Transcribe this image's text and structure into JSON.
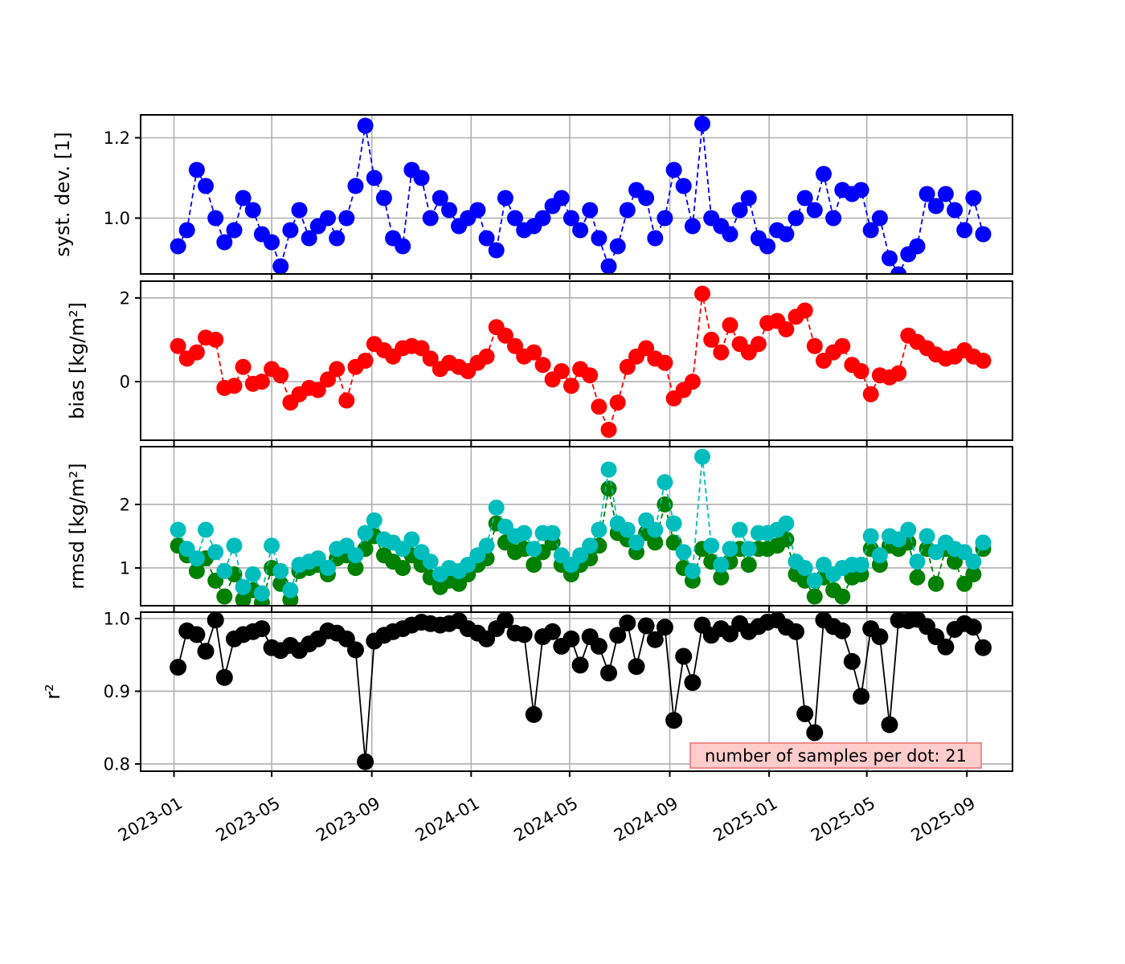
{
  "figure": {
    "background": "#ffffff",
    "grid_color": "#b0b0b0",
    "spine_color": "#000000"
  },
  "legend": {
    "text": "number of samples per dot: 21",
    "bg": "#ffcccc",
    "border": "#f28b8b"
  },
  "x_axis": {
    "tick_labels": [
      "2023-01",
      "2023-05",
      "2023-09",
      "2024-01",
      "2024-05",
      "2024-09",
      "2025-01",
      "2025-05",
      "2025-09"
    ],
    "tick_dates": [
      "2023-01-01",
      "2023-05-01",
      "2023-09-01",
      "2024-01-01",
      "2024-05-01",
      "2024-09-01",
      "2025-01-01",
      "2025-05-01",
      "2025-09-01"
    ],
    "xlim": [
      "2022-11-21",
      "2025-10-27"
    ],
    "rotation_deg": 30
  },
  "chart_data": {
    "type": "line",
    "x_dates": [
      "2023-01-06",
      "2023-01-17",
      "2023-01-29",
      "2023-02-09",
      "2023-02-21",
      "2023-03-04",
      "2023-03-16",
      "2023-03-27",
      "2023-04-08",
      "2023-04-19",
      "2023-05-01",
      "2023-05-12",
      "2023-05-24",
      "2023-06-04",
      "2023-06-16",
      "2023-06-27",
      "2023-07-09",
      "2023-07-20",
      "2023-08-01",
      "2023-08-12",
      "2023-08-24",
      "2023-09-04",
      "2023-09-16",
      "2023-09-27",
      "2023-10-09",
      "2023-10-20",
      "2023-11-01",
      "2023-11-12",
      "2023-11-24",
      "2023-12-05",
      "2023-12-17",
      "2023-12-28",
      "2024-01-09",
      "2024-01-20",
      "2024-02-01",
      "2024-02-12",
      "2024-02-24",
      "2024-03-06",
      "2024-03-18",
      "2024-03-29",
      "2024-04-10",
      "2024-04-21",
      "2024-05-03",
      "2024-05-14",
      "2024-05-26",
      "2024-06-06",
      "2024-06-18",
      "2024-06-29",
      "2024-07-11",
      "2024-07-22",
      "2024-08-03",
      "2024-08-14",
      "2024-08-26",
      "2024-09-06",
      "2024-09-18",
      "2024-09-29",
      "2024-10-11",
      "2024-10-22",
      "2024-11-03",
      "2024-11-14",
      "2024-11-26",
      "2024-12-07",
      "2024-12-19",
      "2024-12-30",
      "2025-01-11",
      "2025-01-22",
      "2025-02-03",
      "2025-02-14",
      "2025-02-26",
      "2025-03-09",
      "2025-03-21",
      "2025-04-01",
      "2025-04-13",
      "2025-04-24",
      "2025-05-06",
      "2025-05-17",
      "2025-05-29",
      "2025-06-09",
      "2025-06-21",
      "2025-07-02",
      "2025-07-14",
      "2025-07-25",
      "2025-08-06",
      "2025-08-17",
      "2025-08-29",
      "2025-09-09",
      "2025-09-21"
    ],
    "panels": [
      {
        "name": "syst-dev",
        "ylabel": "syst. dev. [1]",
        "ylim": [
          0.861,
          1.257
        ],
        "yticks": [
          {
            "v": 1.0,
            "label": "1.0"
          },
          {
            "v": 1.2,
            "label": "1.2"
          }
        ],
        "series": [
          {
            "name": "syst_dev",
            "color": "#0000ff",
            "linestyle": "dashed",
            "values": [
              0.93,
              0.97,
              1.12,
              1.08,
              1.0,
              0.94,
              0.97,
              1.05,
              1.02,
              0.96,
              0.94,
              0.88,
              0.97,
              1.02,
              0.95,
              0.98,
              1.0,
              0.95,
              1.0,
              1.08,
              1.23,
              1.1,
              1.05,
              0.95,
              0.93,
              1.12,
              1.1,
              1.0,
              1.05,
              1.02,
              0.98,
              1.0,
              1.02,
              0.95,
              0.92,
              1.05,
              1.0,
              0.97,
              0.98,
              1.0,
              1.03,
              1.05,
              1.0,
              0.97,
              1.02,
              0.95,
              0.88,
              0.93,
              1.02,
              1.07,
              1.05,
              0.95,
              1.0,
              1.12,
              1.08,
              0.98,
              1.235,
              1.0,
              0.98,
              0.96,
              1.02,
              1.05,
              0.95,
              0.93,
              0.97,
              0.96,
              1.0,
              1.05,
              1.02,
              1.11,
              1.0,
              1.07,
              1.06,
              1.07,
              0.97,
              1.0,
              0.9,
              0.86,
              0.91,
              0.93,
              1.06,
              1.03,
              1.06,
              1.02,
              0.97,
              1.05,
              0.96
            ]
          }
        ]
      },
      {
        "name": "bias",
        "ylabel": "bias [kg/m²]",
        "ylim": [
          -1.4,
          2.4
        ],
        "yticks": [
          {
            "v": 0,
            "label": "0"
          },
          {
            "v": 2,
            "label": "2"
          }
        ],
        "series": [
          {
            "name": "bias",
            "color": "#ff0000",
            "linestyle": "dashed",
            "values": [
              0.85,
              0.55,
              0.7,
              1.05,
              1.0,
              -0.15,
              -0.1,
              0.35,
              -0.05,
              0.0,
              0.3,
              0.15,
              -0.5,
              -0.3,
              -0.15,
              -0.2,
              0.05,
              0.3,
              -0.45,
              0.35,
              0.5,
              0.9,
              0.75,
              0.6,
              0.8,
              0.85,
              0.8,
              0.55,
              0.3,
              0.45,
              0.35,
              0.25,
              0.45,
              0.6,
              1.3,
              1.1,
              0.85,
              0.6,
              0.7,
              0.4,
              0.05,
              0.25,
              -0.1,
              0.3,
              0.15,
              -0.6,
              -1.15,
              -0.5,
              0.35,
              0.6,
              0.8,
              0.55,
              0.45,
              -0.4,
              -0.2,
              0.0,
              2.1,
              1.0,
              0.7,
              1.35,
              0.9,
              0.7,
              0.9,
              1.4,
              1.45,
              1.25,
              1.55,
              1.7,
              0.85,
              0.5,
              0.7,
              0.85,
              0.4,
              0.25,
              -0.3,
              0.15,
              0.1,
              0.2,
              1.1,
              0.95,
              0.8,
              0.65,
              0.55,
              0.6,
              0.75,
              0.6,
              0.5
            ]
          }
        ]
      },
      {
        "name": "rmsd",
        "ylabel": "rmsd [kg/m²]",
        "ylim": [
          0.405,
          2.91
        ],
        "yticks": [
          {
            "v": 1,
            "label": "1"
          },
          {
            "v": 2,
            "label": "2"
          }
        ],
        "series": [
          {
            "name": "rmsd_green",
            "color": "#008000",
            "linestyle": "dashed",
            "values": [
              1.35,
              1.2,
              0.95,
              1.15,
              0.8,
              0.55,
              0.9,
              0.5,
              0.65,
              0.45,
              1.0,
              0.75,
              0.5,
              0.95,
              1.0,
              1.05,
              0.9,
              1.15,
              1.2,
              1.0,
              1.3,
              1.5,
              1.2,
              1.1,
              1.0,
              1.2,
              1.05,
              0.85,
              0.7,
              0.8,
              0.75,
              0.9,
              1.05,
              1.15,
              1.7,
              1.4,
              1.25,
              1.3,
              1.05,
              1.25,
              1.4,
              1.05,
              0.9,
              1.05,
              1.15,
              1.35,
              2.25,
              1.55,
              1.45,
              1.25,
              1.55,
              1.4,
              2.0,
              1.4,
              1.0,
              0.8,
              1.3,
              1.1,
              0.85,
              1.1,
              1.3,
              1.05,
              1.3,
              1.3,
              1.35,
              1.45,
              0.9,
              0.8,
              0.55,
              0.85,
              0.65,
              0.55,
              0.85,
              0.9,
              1.3,
              1.05,
              1.35,
              1.3,
              1.4,
              0.85,
              1.3,
              0.75,
              1.3,
              1.1,
              0.75,
              0.9,
              1.3
            ]
          },
          {
            "name": "rmsd_cyan",
            "color": "#00bdbd",
            "linestyle": "dashed",
            "values": [
              1.6,
              1.3,
              1.15,
              1.6,
              1.25,
              0.95,
              1.35,
              0.7,
              0.9,
              0.6,
              1.35,
              0.95,
              0.65,
              1.05,
              1.1,
              1.15,
              1.0,
              1.3,
              1.35,
              1.2,
              1.55,
              1.75,
              1.45,
              1.4,
              1.3,
              1.45,
              1.25,
              1.1,
              0.9,
              1.0,
              0.95,
              1.05,
              1.2,
              1.35,
              1.95,
              1.65,
              1.5,
              1.55,
              1.3,
              1.55,
              1.55,
              1.2,
              1.05,
              1.2,
              1.35,
              1.6,
              2.55,
              1.7,
              1.6,
              1.4,
              1.75,
              1.6,
              2.35,
              1.7,
              1.25,
              0.95,
              2.75,
              1.35,
              1.05,
              1.3,
              1.6,
              1.3,
              1.55,
              1.55,
              1.6,
              1.7,
              1.1,
              1.0,
              0.8,
              1.05,
              0.9,
              1.0,
              1.05,
              1.05,
              1.5,
              1.2,
              1.5,
              1.45,
              1.6,
              1.1,
              1.5,
              1.25,
              1.4,
              1.3,
              1.25,
              1.1,
              1.4
            ]
          }
        ]
      },
      {
        "name": "r2",
        "ylabel": "r²",
        "ylim": [
          0.79,
          1.0088
        ],
        "yticks": [
          {
            "v": 0.8,
            "label": "0.8"
          },
          {
            "v": 0.9,
            "label": "0.9"
          },
          {
            "v": 1.0,
            "label": "1.0"
          }
        ],
        "series": [
          {
            "name": "r2",
            "color": "#000000",
            "linestyle": "solid",
            "values": [
              0.933,
              0.983,
              0.978,
              0.955,
              0.998,
              0.919,
              0.972,
              0.978,
              0.982,
              0.986,
              0.96,
              0.956,
              0.963,
              0.956,
              0.965,
              0.972,
              0.983,
              0.98,
              0.972,
              0.957,
              0.803,
              0.969,
              0.977,
              0.982,
              0.986,
              0.991,
              0.995,
              0.993,
              0.991,
              0.993,
              0.997,
              0.986,
              0.98,
              0.972,
              0.986,
              0.998,
              0.98,
              0.978,
              0.868,
              0.975,
              0.982,
              0.962,
              0.972,
              0.936,
              0.975,
              0.962,
              0.925,
              0.977,
              0.994,
              0.934,
              0.99,
              0.971,
              0.988,
              0.86,
              0.948,
              0.912,
              0.991,
              0.977,
              0.986,
              0.979,
              0.993,
              0.982,
              0.989,
              0.995,
              0.998,
              0.988,
              0.982,
              0.869,
              0.843,
              0.998,
              0.989,
              0.983,
              0.941,
              0.893,
              0.986,
              0.975,
              0.854,
              0.998,
              0.997,
              0.999,
              0.989,
              0.975,
              0.961,
              0.985,
              0.993,
              0.988,
              0.96
            ]
          }
        ]
      }
    ],
    "samples_per_dot": 21
  }
}
